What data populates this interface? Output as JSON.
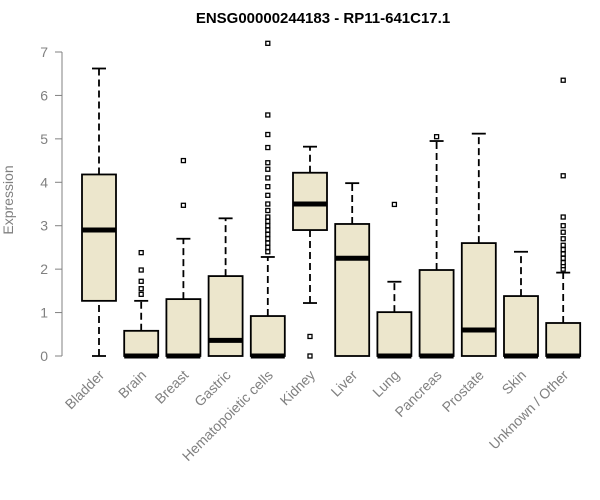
{
  "chart_data": {
    "type": "box",
    "title": "ENSG00000244183 - RP11-641C17.1",
    "xlabel": "",
    "ylabel": "Expression",
    "ylim": [
      0,
      7
    ],
    "yticks": [
      0,
      1,
      2,
      3,
      4,
      5,
      6,
      7
    ],
    "grid": false,
    "box_fill": "#ece6cc",
    "box_stroke": "#000000",
    "categories": [
      "Bladder",
      "Brain",
      "Breast",
      "Gastric",
      "Hematopoietic cells",
      "Kidney",
      "Liver",
      "Lung",
      "Pancreas",
      "Prostate",
      "Skin",
      "Unknown / Other"
    ],
    "boxes": [
      {
        "category": "Bladder",
        "whisker_low": 0,
        "q1": 1.27,
        "median": 2.9,
        "q3": 4.18,
        "whisker_high": 6.62,
        "outliers": []
      },
      {
        "category": "Brain",
        "whisker_low": 0,
        "q1": 0,
        "median": 0,
        "q3": 0.58,
        "whisker_high": 1.27,
        "outliers": [
          1.42,
          1.55,
          1.72,
          1.98,
          2.38
        ]
      },
      {
        "category": "Breast",
        "whisker_low": 0,
        "q1": 0,
        "median": 0,
        "q3": 1.31,
        "whisker_high": 2.7,
        "outliers": [
          3.47,
          4.5
        ]
      },
      {
        "category": "Gastric",
        "whisker_low": 0,
        "q1": 0,
        "median": 0.36,
        "q3": 1.84,
        "whisker_high": 3.17,
        "outliers": []
      },
      {
        "category": "Hematopoietic cells",
        "whisker_low": 0,
        "q1": 0,
        "median": 0,
        "q3": 0.92,
        "whisker_high": 2.28,
        "outliers": [
          2.4,
          2.5,
          2.6,
          2.7,
          2.8,
          2.9,
          3.0,
          3.1,
          3.2,
          3.35,
          3.5,
          3.7,
          3.9,
          4.1,
          4.3,
          4.45,
          4.8,
          5.1,
          5.55,
          7.2
        ]
      },
      {
        "category": "Kidney",
        "whisker_low": 1.22,
        "q1": 2.9,
        "median": 3.5,
        "q3": 4.22,
        "whisker_high": 4.82,
        "outliers": [
          0,
          0.45
        ]
      },
      {
        "category": "Liver",
        "whisker_low": 0,
        "q1": 0,
        "median": 2.25,
        "q3": 3.04,
        "whisker_high": 3.98,
        "outliers": []
      },
      {
        "category": "Lung",
        "whisker_low": 0,
        "q1": 0,
        "median": 0,
        "q3": 1.01,
        "whisker_high": 1.71,
        "outliers": [
          3.49
        ]
      },
      {
        "category": "Pancreas",
        "whisker_low": 0,
        "q1": 0,
        "median": 0,
        "q3": 1.98,
        "whisker_high": 4.95,
        "outliers": [
          5.05
        ]
      },
      {
        "category": "Prostate",
        "whisker_low": 0,
        "q1": 0,
        "median": 0.6,
        "q3": 2.6,
        "whisker_high": 5.12,
        "outliers": []
      },
      {
        "category": "Skin",
        "whisker_low": 0,
        "q1": 0,
        "median": 0,
        "q3": 1.38,
        "whisker_high": 2.4,
        "outliers": []
      },
      {
        "category": "Unknown / Other",
        "whisker_low": 0,
        "q1": 0,
        "median": 0,
        "q3": 0.76,
        "whisker_high": 1.92,
        "outliers": [
          2.0,
          2.08,
          2.15,
          2.25,
          2.35,
          2.45,
          2.55,
          2.7,
          2.85,
          3.0,
          3.2,
          4.15,
          6.35
        ]
      }
    ]
  }
}
